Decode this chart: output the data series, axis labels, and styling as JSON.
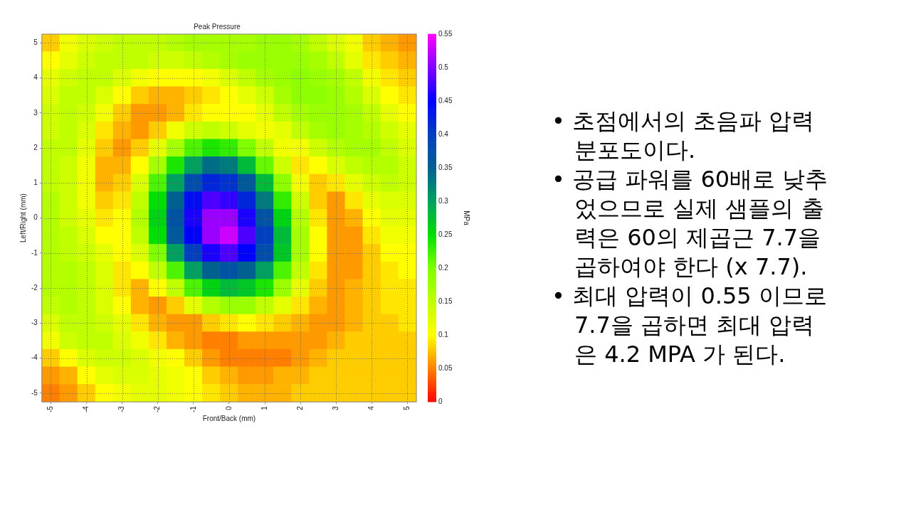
{
  "chart_data": {
    "type": "heatmap",
    "title": "Peak Pressure",
    "xlabel": "Front/Back (mm)",
    "ylabel": "Left/Right (mm)",
    "clabel": "MPa",
    "categories": [
      "-5",
      null,
      "-4",
      null,
      "-3",
      null,
      "-2",
      null,
      "-1",
      null,
      "0",
      null,
      "1",
      null,
      "2",
      null,
      "3",
      null,
      "4",
      null,
      "5"
    ],
    "y_categories": [
      "5",
      null,
      "4",
      null,
      "3",
      null,
      "2",
      null,
      "1",
      null,
      "0",
      null,
      "-1",
      null,
      "-2",
      null,
      "-3",
      null,
      "-4",
      null,
      "-5"
    ],
    "cells": [
      [
        0.08,
        0.11,
        0.13,
        0.14,
        0.15,
        0.15,
        0.15,
        0.16,
        0.17,
        0.17,
        0.17,
        0.17,
        0.18,
        0.18,
        0.17,
        0.15,
        0.13,
        0.11,
        0.08,
        0.07,
        0.06
      ],
      [
        0.1,
        0.12,
        0.14,
        0.15,
        0.15,
        0.15,
        0.14,
        0.14,
        0.15,
        0.16,
        0.17,
        0.18,
        0.18,
        0.18,
        0.18,
        0.17,
        0.15,
        0.12,
        0.09,
        0.08,
        0.07
      ],
      [
        0.12,
        0.14,
        0.15,
        0.15,
        0.13,
        0.11,
        0.1,
        0.1,
        0.1,
        0.11,
        0.13,
        0.15,
        0.17,
        0.18,
        0.19,
        0.18,
        0.17,
        0.15,
        0.11,
        0.09,
        0.08
      ],
      [
        0.13,
        0.15,
        0.15,
        0.13,
        0.1,
        0.08,
        0.07,
        0.07,
        0.08,
        0.09,
        0.1,
        0.12,
        0.14,
        0.17,
        0.19,
        0.19,
        0.18,
        0.16,
        0.13,
        0.1,
        0.09
      ],
      [
        0.14,
        0.15,
        0.14,
        0.11,
        0.08,
        0.06,
        0.06,
        0.07,
        0.09,
        0.1,
        0.1,
        0.1,
        0.12,
        0.15,
        0.17,
        0.18,
        0.18,
        0.17,
        0.15,
        0.12,
        0.1
      ],
      [
        0.14,
        0.15,
        0.13,
        0.09,
        0.07,
        0.06,
        0.08,
        0.11,
        0.14,
        0.15,
        0.14,
        0.12,
        0.11,
        0.12,
        0.15,
        0.17,
        0.18,
        0.17,
        0.16,
        0.14,
        0.12
      ],
      [
        0.15,
        0.15,
        0.12,
        0.08,
        0.06,
        0.08,
        0.12,
        0.17,
        0.22,
        0.24,
        0.23,
        0.2,
        0.15,
        0.11,
        0.11,
        0.14,
        0.16,
        0.17,
        0.17,
        0.15,
        0.13
      ],
      [
        0.15,
        0.14,
        0.11,
        0.07,
        0.07,
        0.1,
        0.17,
        0.24,
        0.3,
        0.34,
        0.33,
        0.28,
        0.21,
        0.14,
        0.09,
        0.1,
        0.13,
        0.15,
        0.16,
        0.16,
        0.14
      ],
      [
        0.15,
        0.14,
        0.11,
        0.07,
        0.08,
        0.13,
        0.22,
        0.3,
        0.38,
        0.42,
        0.41,
        0.36,
        0.28,
        0.19,
        0.11,
        0.08,
        0.09,
        0.12,
        0.14,
        0.15,
        0.14
      ],
      [
        0.16,
        0.14,
        0.11,
        0.08,
        0.09,
        0.15,
        0.25,
        0.35,
        0.44,
        0.48,
        0.47,
        0.42,
        0.33,
        0.23,
        0.14,
        0.08,
        0.06,
        0.09,
        0.12,
        0.13,
        0.13
      ],
      [
        0.16,
        0.14,
        0.12,
        0.09,
        0.1,
        0.16,
        0.26,
        0.37,
        0.46,
        0.51,
        0.51,
        0.46,
        0.37,
        0.26,
        0.16,
        0.09,
        0.06,
        0.07,
        0.1,
        0.12,
        0.12
      ],
      [
        0.16,
        0.15,
        0.13,
        0.1,
        0.1,
        0.15,
        0.25,
        0.36,
        0.45,
        0.51,
        0.53,
        0.48,
        0.4,
        0.28,
        0.17,
        0.1,
        0.06,
        0.06,
        0.09,
        0.11,
        0.11
      ],
      [
        0.16,
        0.15,
        0.14,
        0.12,
        0.1,
        0.13,
        0.2,
        0.3,
        0.4,
        0.46,
        0.48,
        0.45,
        0.38,
        0.27,
        0.17,
        0.1,
        0.06,
        0.06,
        0.08,
        0.1,
        0.1
      ],
      [
        0.16,
        0.16,
        0.15,
        0.13,
        0.09,
        0.1,
        0.15,
        0.22,
        0.3,
        0.35,
        0.37,
        0.35,
        0.3,
        0.22,
        0.15,
        0.09,
        0.06,
        0.06,
        0.08,
        0.09,
        0.1
      ],
      [
        0.16,
        0.16,
        0.15,
        0.13,
        0.09,
        0.07,
        0.1,
        0.15,
        0.22,
        0.26,
        0.28,
        0.27,
        0.24,
        0.18,
        0.12,
        0.08,
        0.06,
        0.07,
        0.08,
        0.09,
        0.09
      ],
      [
        0.15,
        0.16,
        0.15,
        0.13,
        0.1,
        0.07,
        0.06,
        0.08,
        0.12,
        0.16,
        0.18,
        0.18,
        0.15,
        0.12,
        0.09,
        0.07,
        0.06,
        0.07,
        0.08,
        0.09,
        0.09
      ],
      [
        0.13,
        0.15,
        0.15,
        0.14,
        0.12,
        0.09,
        0.07,
        0.06,
        0.06,
        0.08,
        0.09,
        0.1,
        0.09,
        0.08,
        0.07,
        0.06,
        0.06,
        0.07,
        0.08,
        0.08,
        0.09
      ],
      [
        0.11,
        0.14,
        0.15,
        0.15,
        0.13,
        0.11,
        0.09,
        0.07,
        0.06,
        0.05,
        0.05,
        0.06,
        0.06,
        0.06,
        0.06,
        0.06,
        0.07,
        0.08,
        0.08,
        0.08,
        0.08
      ],
      [
        0.08,
        0.1,
        0.13,
        0.14,
        0.14,
        0.13,
        0.11,
        0.1,
        0.08,
        0.06,
        0.05,
        0.05,
        0.05,
        0.05,
        0.06,
        0.07,
        0.08,
        0.08,
        0.08,
        0.08,
        0.08
      ],
      [
        0.06,
        0.07,
        0.1,
        0.12,
        0.13,
        0.13,
        0.12,
        0.11,
        0.1,
        0.08,
        0.07,
        0.06,
        0.06,
        0.07,
        0.07,
        0.08,
        0.08,
        0.08,
        0.08,
        0.08,
        0.08
      ],
      [
        0.05,
        0.06,
        0.08,
        0.1,
        0.11,
        0.12,
        0.12,
        0.11,
        0.1,
        0.09,
        0.08,
        0.07,
        0.07,
        0.07,
        0.08,
        0.08,
        0.08,
        0.08,
        0.08,
        0.08,
        0.08
      ]
    ],
    "clim": [
      0,
      0.55
    ],
    "cticks": [
      0,
      0.05,
      0.1,
      0.15,
      0.2,
      0.25,
      0.3,
      0.35,
      0.4,
      0.45,
      0.5,
      0.55
    ],
    "colors": [
      "#ff0000",
      "#ff8000",
      "#ffff00",
      "#c0ff00",
      "#80ff00",
      "#00e000",
      "#00a060",
      "#006090",
      "#0040c0",
      "#0000ff",
      "#8000ff",
      "#ff00ff"
    ],
    "grid": true,
    "annotations": [
      "• 초점에서의 초음파 압력 분포도이다.",
      "• 공급 파워를 60배로 낮추었으므로 실제 샘플의 출력은 60의 제곱근 7.7을 곱하여야 한다 (x 7.7).",
      "• 최대 압력이 0.55 이므로 7.7을 곱하면 최대 압력은 4.2 MPA 가 된다."
    ]
  }
}
